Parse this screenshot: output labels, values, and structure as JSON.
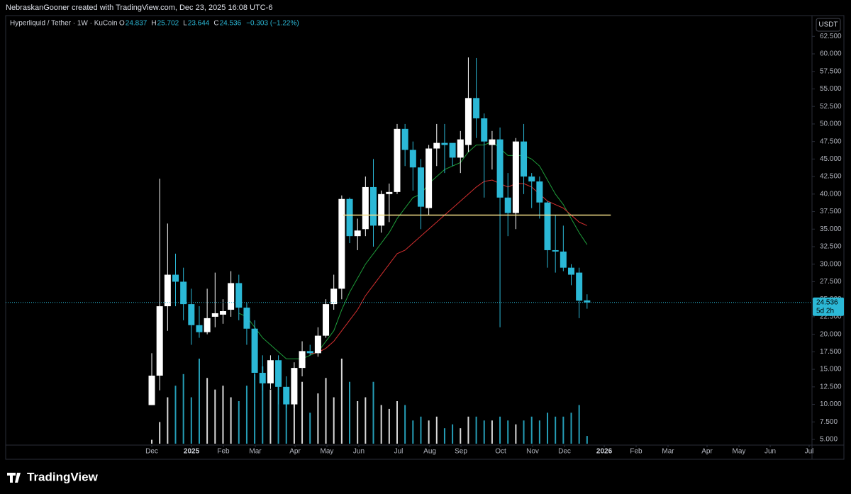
{
  "header": {
    "credit": "NebraskanGooner created with TradingView.com, Dec 23, 2025 16:08 UTC-6"
  },
  "footer": {
    "brand": "TradingView"
  },
  "chart_data": {
    "type": "candlestick",
    "title": "Hyperliquid / Tether · 1W · KuCoin",
    "ohlc_legend": [
      {
        "label": "O",
        "value": "24.837"
      },
      {
        "label": "H",
        "value": "25.702"
      },
      {
        "label": "L",
        "value": "23.644"
      },
      {
        "label": "C",
        "value": "24.536"
      },
      {
        "label": "",
        "value": "−0.303 (−1.22%)"
      }
    ],
    "currency": "USDT",
    "up_color": "#ffffff",
    "down_color": "#2bb8d6",
    "open": [
      9.9,
      14.1,
      24,
      28.5,
      27.5,
      24.3,
      21.3,
      20.3,
      22.5,
      22.8,
      23.5,
      27.3,
      23.8,
      20.8,
      14.5,
      13,
      16.3,
      12.5,
      10,
      15.2,
      17.6,
      17.3,
      19.8,
      24.3,
      26.5,
      39.3,
      34,
      35,
      41,
      35.5,
      40,
      40.3,
      49.3,
      46.3,
      43.8,
      38,
      46.5,
      47.3,
      47.3,
      45.2,
      47,
      53.7,
      50.8,
      47,
      47.8,
      39.5,
      37.3,
      47.5,
      42.5,
      41.8,
      38.8,
      32,
      31.8,
      29.5,
      28.8,
      24.837
    ],
    "high": [
      17.3,
      42.2,
      35.8,
      31.5,
      29.5,
      26.5,
      24,
      26.5,
      28.8,
      25,
      29,
      28.5,
      24.5,
      22,
      17,
      17,
      17,
      14,
      16,
      19,
      18.5,
      21,
      25,
      28.5,
      39.8,
      39.5,
      36.5,
      42.5,
      45,
      40.5,
      41.5,
      50,
      50,
      47.5,
      45,
      47,
      50,
      50,
      47,
      49,
      59.5,
      59.4,
      51.5,
      49,
      49.5,
      43,
      48,
      50,
      43,
      42.5,
      39,
      37,
      35.5,
      30,
      29.5,
      25.702
    ],
    "low": [
      9.9,
      12,
      20.5,
      24,
      22,
      18.5,
      19.5,
      20,
      21,
      21.5,
      22.5,
      22,
      18.5,
      13.5,
      12,
      12.2,
      10,
      9.5,
      9.5,
      14,
      17,
      16.8,
      19.5,
      23.5,
      25,
      33,
      32,
      34,
      32.5,
      34.5,
      36,
      40,
      44,
      40.5,
      35,
      37,
      44,
      43,
      44,
      43,
      46,
      48,
      39.5,
      43.5,
      21,
      34,
      35,
      40,
      38,
      36.5,
      29.5,
      28.8,
      29,
      27,
      22.3,
      23.644
    ],
    "close": [
      14.1,
      24,
      28.5,
      27.5,
      24.3,
      21.3,
      20.3,
      22.3,
      23,
      23.3,
      27.3,
      23.8,
      20.8,
      14.5,
      13,
      16.3,
      12.5,
      10,
      15.2,
      17.6,
      17.3,
      19.8,
      24.3,
      26.5,
      39.3,
      34,
      34.8,
      41,
      35.5,
      40,
      40.3,
      49.3,
      46.3,
      43.8,
      38.2,
      46.5,
      47.3,
      47,
      45.2,
      47.8,
      53.7,
      50.8,
      47.5,
      47.8,
      39.5,
      37.3,
      47.5,
      42.5,
      41.8,
      38.8,
      32,
      31.8,
      29.5,
      28.5,
      24.8,
      24.536
    ],
    "volume": [
      5,
      28,
      60,
      75,
      90,
      60,
      110,
      85,
      70,
      75,
      60,
      55,
      75,
      90,
      100,
      70,
      75,
      55,
      55,
      80,
      40,
      65,
      85,
      60,
      110,
      80,
      55,
      60,
      80,
      50,
      45,
      55,
      50,
      30,
      35,
      30,
      35,
      20,
      25,
      20,
      35,
      35,
      30,
      30,
      35,
      30,
      25,
      30,
      35,
      30,
      40,
      35,
      35,
      40,
      50,
      10
    ],
    "series": [
      {
        "color": "#1e9c3a",
        "values": [
          null,
          null,
          null,
          null,
          null,
          null,
          null,
          null,
          null,
          null,
          null,
          23,
          22.5,
          21,
          19.5,
          18.5,
          17.5,
          16.5,
          16.5,
          16.5,
          17,
          17.5,
          19,
          20.5,
          23.5,
          26,
          28,
          30,
          31.5,
          33,
          34.5,
          36.5,
          38,
          39.5,
          40,
          41.5,
          42.5,
          43.5,
          44,
          44.5,
          46,
          47,
          47,
          47.5,
          46.5,
          45.5,
          45.5,
          45.5,
          45,
          44,
          42,
          40,
          38.5,
          36.5,
          34.5,
          32.8
        ]
      },
      {
        "color": "#d32f2f",
        "values": [
          null,
          null,
          null,
          null,
          null,
          null,
          null,
          null,
          null,
          null,
          null,
          null,
          null,
          null,
          null,
          null,
          null,
          null,
          null,
          null,
          17.2,
          17.4,
          18,
          19,
          20.5,
          22,
          23.5,
          25.5,
          27,
          28.5,
          30,
          31.5,
          32,
          33,
          34,
          35,
          36,
          37,
          38,
          39,
          40,
          41,
          41.8,
          42,
          41.5,
          41,
          41.5,
          41.5,
          41,
          40,
          39,
          38.5,
          38,
          37,
          36,
          35.5
        ]
      }
    ],
    "horizontal_line": {
      "value": 37,
      "from": 24.2,
      "to": 58,
      "color": "#f5e08a"
    },
    "last_price": 24.536,
    "countdown": "5d 2h",
    "xlim": [
      -18.46,
      83.42
    ],
    "xticks": [
      {
        "value": 0,
        "label": "Dec"
      },
      {
        "value": 5.02,
        "label": "2025"
      },
      {
        "value": 9.05,
        "label": "Feb"
      },
      {
        "value": 13.08,
        "label": "Mar"
      },
      {
        "value": 18.1,
        "label": "Apr"
      },
      {
        "value": 22.13,
        "label": "May"
      },
      {
        "value": 26.16,
        "label": "Jun"
      },
      {
        "value": 31.18,
        "label": "Jul"
      },
      {
        "value": 35.13,
        "label": "Aug"
      },
      {
        "value": 39.07,
        "label": "Sep"
      },
      {
        "value": 44.09,
        "label": "Oct"
      },
      {
        "value": 48.12,
        "label": "Nov"
      },
      {
        "value": 52.15,
        "label": "Dec"
      },
      {
        "value": 57.17,
        "label": "2026"
      },
      {
        "value": 61.2,
        "label": "Feb"
      },
      {
        "value": 65.23,
        "label": "Mar"
      },
      {
        "value": 70.16,
        "label": "Apr"
      },
      {
        "value": 74.19,
        "label": "May"
      },
      {
        "value": 78.14,
        "label": "Jun"
      },
      {
        "value": 83.06,
        "label": "Jul"
      }
    ],
    "ylim": [
      2.17,
      65.46
    ],
    "yticks": [
      {
        "value": 5,
        "label": "5.000"
      },
      {
        "value": 7.5,
        "label": "7.500"
      },
      {
        "value": 10,
        "label": "10.000"
      },
      {
        "value": 12.5,
        "label": "12.500"
      },
      {
        "value": 15,
        "label": "15.000"
      },
      {
        "value": 17.5,
        "label": "17.500"
      },
      {
        "value": 20,
        "label": "20.000"
      },
      {
        "value": 22.5,
        "label": "22.500"
      },
      {
        "value": 25,
        "label": "25.000"
      },
      {
        "value": 27.5,
        "label": "27.500"
      },
      {
        "value": 30,
        "label": "30.000"
      },
      {
        "value": 32.5,
        "label": "32.500"
      },
      {
        "value": 35,
        "label": "35.000"
      },
      {
        "value": 37.5,
        "label": "37.500"
      },
      {
        "value": 40,
        "label": "40.000"
      },
      {
        "value": 42.5,
        "label": "42.500"
      },
      {
        "value": 45,
        "label": "45.000"
      },
      {
        "value": 47.5,
        "label": "47.500"
      },
      {
        "value": 50,
        "label": "50.000"
      },
      {
        "value": 52.5,
        "label": "52.500"
      },
      {
        "value": 55,
        "label": "55.000"
      },
      {
        "value": 57.5,
        "label": "57.500"
      },
      {
        "value": 60,
        "label": "60.000"
      },
      {
        "value": 62.5,
        "label": "62.500"
      }
    ]
  }
}
